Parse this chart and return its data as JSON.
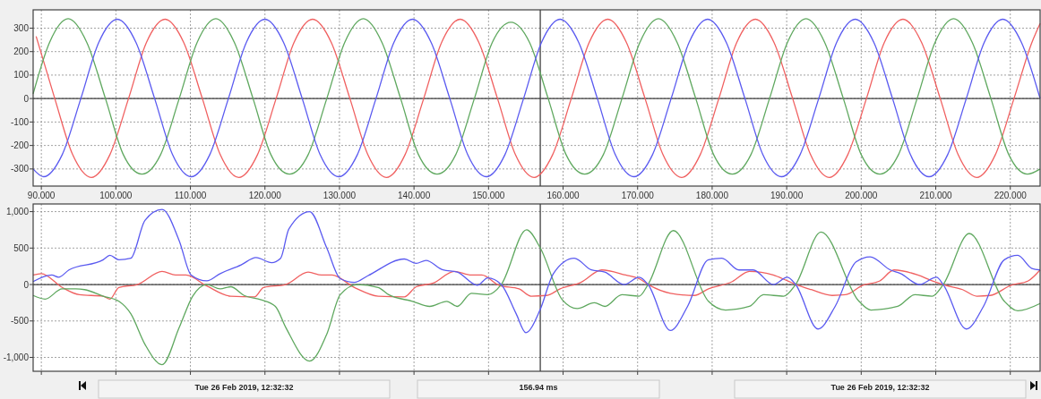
{
  "chart_data": [
    {
      "type": "line",
      "xlim": [
        88.9,
        224
      ],
      "ylim": [
        -373,
        378
      ],
      "xticks": [
        {
          "value": 90,
          "label": "90.000"
        },
        {
          "value": 100,
          "label": "100.000"
        },
        {
          "value": 110,
          "label": "110.000"
        },
        {
          "value": 120,
          "label": "120.000"
        },
        {
          "value": 130,
          "label": "130.000"
        },
        {
          "value": 140,
          "label": "140.000"
        },
        {
          "value": 150,
          "label": "150.000"
        },
        {
          "value": 160,
          "label": "160.000"
        },
        {
          "value": 170,
          "label": "170.000"
        },
        {
          "value": 180,
          "label": "180.000"
        },
        {
          "value": 190,
          "label": "190.000"
        },
        {
          "value": 200,
          "label": "200.000"
        },
        {
          "value": 210,
          "label": "210.000"
        },
        {
          "value": 220,
          "label": "220.000"
        }
      ],
      "yticks": [
        -300,
        -200,
        -100,
        0,
        100,
        200,
        300
      ],
      "grid": true,
      "line_style": "solid",
      "ref_lines": [
        {
          "axis": "y",
          "value": 0,
          "color": "#404040"
        },
        {
          "axis": "x",
          "value": 156.94,
          "color": "#404040"
        }
      ],
      "series": [
        {
          "color": "#f06060",
          "x": [
            89.3,
            91.8,
            94.2,
            96.7,
            99.2,
            101.7,
            104.1,
            106.6,
            109.1,
            111.6,
            114.0,
            116.5,
            119.0,
            121.5,
            123.9,
            126.4,
            128.9,
            131.4,
            133.8,
            136.3,
            138.8,
            141.3,
            143.7,
            146.2,
            148.7,
            151.2,
            153.6,
            156.1,
            158.6,
            161.1,
            163.5,
            166.0,
            168.5,
            171.0,
            173.4,
            175.9,
            178.4,
            180.9,
            183.3,
            185.8,
            188.3,
            190.8,
            193.2,
            195.7,
            198.2,
            200.7,
            203.1,
            205.6,
            208.1,
            210.6,
            213.0,
            215.5,
            218.0,
            220.5,
            222.9,
            224.0
          ],
          "values": [
            265,
            0,
            -239,
            -336,
            -239,
            0,
            239,
            338,
            239,
            0,
            -239,
            -336,
            -239,
            0,
            239,
            338,
            239,
            0,
            -239,
            -336,
            -239,
            0,
            239,
            338,
            239,
            0,
            -239,
            -336,
            -239,
            0,
            239,
            338,
            239,
            0,
            -239,
            -336,
            -239,
            0,
            239,
            338,
            239,
            0,
            -239,
            -336,
            -239,
            0,
            239,
            338,
            239,
            0,
            -239,
            -336,
            -239,
            0,
            239,
            320
          ]
        },
        {
          "color": "#5fa85f",
          "x": [
            88.9,
            91.1,
            93.6,
            96.1,
            98.6,
            101.0,
            103.5,
            106.0,
            108.5,
            110.9,
            113.4,
            115.9,
            118.4,
            120.8,
            123.3,
            125.8,
            128.3,
            130.7,
            133.2,
            135.7,
            138.2,
            140.6,
            143.1,
            145.6,
            148.1,
            150.5,
            153.0,
            155.5,
            158.0,
            160.4,
            162.9,
            165.4,
            167.9,
            170.3,
            172.8,
            175.3,
            177.8,
            180.2,
            182.7,
            185.2,
            187.7,
            190.1,
            192.6,
            195.1,
            197.6,
            200.0,
            202.5,
            205.0,
            207.5,
            209.9,
            212.4,
            214.9,
            217.4,
            219.8,
            222.3,
            224.0
          ],
          "values": [
            20,
            239,
            340,
            239,
            0,
            -239,
            -322,
            -239,
            0,
            239,
            340,
            239,
            0,
            -239,
            -322,
            -239,
            0,
            239,
            340,
            239,
            0,
            -239,
            -322,
            -239,
            0,
            239,
            325,
            239,
            0,
            -239,
            -322,
            -239,
            0,
            239,
            340,
            239,
            0,
            -239,
            -322,
            -239,
            0,
            239,
            340,
            239,
            0,
            -239,
            -322,
            -239,
            0,
            239,
            340,
            239,
            0,
            -239,
            -322,
            -300
          ]
        },
        {
          "color": "#5a5af0",
          "x": [
            88.9,
            90.3,
            92.8,
            95.3,
            97.7,
            100.2,
            102.7,
            105.2,
            107.6,
            110.1,
            112.6,
            115.1,
            117.5,
            120.0,
            122.5,
            125.0,
            127.4,
            129.9,
            132.4,
            134.9,
            137.3,
            139.8,
            142.3,
            144.8,
            147.2,
            149.7,
            152.2,
            154.7,
            157.1,
            159.6,
            162.1,
            164.6,
            167.0,
            169.5,
            172.0,
            174.5,
            176.9,
            179.4,
            181.9,
            184.4,
            186.8,
            189.3,
            191.8,
            194.3,
            196.7,
            199.2,
            201.7,
            204.2,
            206.6,
            209.1,
            211.6,
            214.1,
            216.5,
            219.0,
            221.5,
            224.0
          ],
          "values": [
            -300,
            -333,
            -239,
            0,
            239,
            338,
            239,
            0,
            -239,
            -333,
            -239,
            0,
            239,
            338,
            239,
            0,
            -239,
            -333,
            -239,
            0,
            239,
            338,
            239,
            0,
            -239,
            -333,
            -239,
            0,
            239,
            338,
            239,
            0,
            -239,
            -333,
            -239,
            0,
            239,
            338,
            239,
            0,
            -239,
            -333,
            -239,
            0,
            239,
            338,
            239,
            0,
            -239,
            -333,
            -239,
            0,
            239,
            338,
            239,
            0
          ]
        }
      ]
    },
    {
      "type": "line",
      "xlim": [
        88.9,
        224
      ],
      "ylim": [
        -1190,
        1105
      ],
      "tick_labels": "y",
      "xticks": [
        90,
        100,
        110,
        120,
        130,
        140,
        150,
        160,
        170,
        180,
        190,
        200,
        210,
        220
      ],
      "yticks": [
        {
          "value": -1000,
          "label": "-1,000"
        },
        -500,
        0,
        500,
        {
          "value": 1000,
          "label": "1,000"
        }
      ],
      "grid": true,
      "line_style": "solid",
      "ref_lines": [
        {
          "axis": "y",
          "value": 0,
          "color": "#404040"
        },
        {
          "axis": "x",
          "value": 156.94,
          "color": "#404040"
        }
      ],
      "annotations": [
        "Tue 26 Feb 2019, 12:32:32",
        "156.94 ms",
        "Tue 26 Feb 2019, 12:32:32"
      ],
      "series": [
        {
          "color": "#f06060",
          "x": [
            88.9,
            90.0,
            92.8,
            95.1,
            98.3,
            99.2,
            100.4,
            102.9,
            106.2,
            108.0,
            109.4,
            112.2,
            115.4,
            118.6,
            119.8,
            122.8,
            125.8,
            127.6,
            129.0,
            132.0,
            135.2,
            138.7,
            140.3,
            142.6,
            145.4,
            147.7,
            149.1,
            151.4,
            154.1,
            155.7,
            157.8,
            159.6,
            162.4,
            165.2,
            168.4,
            170.2,
            171.6,
            174.4,
            177.6,
            179.5,
            182.7,
            185.0,
            188.2,
            190.1,
            191.5,
            193.3,
            196.1,
            197.9,
            200.2,
            202.5,
            204.4,
            207.6,
            209.5,
            211.3,
            213.6,
            215.5,
            217.3,
            220.1,
            222.4,
            224.0
          ],
          "values": [
            130,
            150,
            -40,
            -140,
            -160,
            -200,
            -40,
            0,
            180,
            130,
            130,
            -20,
            -160,
            -170,
            -40,
            0,
            170,
            130,
            130,
            -40,
            -160,
            -170,
            -30,
            20,
            180,
            130,
            130,
            -10,
            -60,
            -160,
            -150,
            -60,
            30,
            200,
            130,
            80,
            -10,
            -120,
            -150,
            -60,
            40,
            180,
            130,
            50,
            -10,
            -70,
            -150,
            -140,
            -10,
            50,
            200,
            130,
            50,
            -10,
            -70,
            -160,
            -150,
            -10,
            50,
            200
          ]
        },
        {
          "color": "#5fa85f",
          "x": [
            88.9,
            90.5,
            92.8,
            94.6,
            95.8,
            98.3,
            100.4,
            102.0,
            103.9,
            106.2,
            108.5,
            110.3,
            112.2,
            114.0,
            115.4,
            117.2,
            119.5,
            121.4,
            122.8,
            126.0,
            128.3,
            130.1,
            132.4,
            135.2,
            136.6,
            139.8,
            142.1,
            144.4,
            145.8,
            147.7,
            149.9,
            151.7,
            155.1,
            156.9,
            159.9,
            161.9,
            164.2,
            165.6,
            167.9,
            170.2,
            171.4,
            174.8,
            179.5,
            181.8,
            185.0,
            186.9,
            189.6,
            191.2,
            194.6,
            199.7,
            201.3,
            204.9,
            207.2,
            209.5,
            211.0,
            214.5,
            219.2,
            221.0,
            224.0
          ],
          "values": [
            -150,
            -200,
            -60,
            -60,
            -70,
            -160,
            -230,
            -400,
            -820,
            -1100,
            -590,
            -160,
            0,
            -60,
            -30,
            -150,
            -210,
            -300,
            -590,
            -1050,
            -680,
            -140,
            0,
            -40,
            -140,
            -230,
            -300,
            -230,
            -300,
            -120,
            -140,
            0,
            750,
            510,
            -210,
            -330,
            -250,
            -300,
            -140,
            -160,
            0,
            740,
            -230,
            -350,
            -300,
            -140,
            -160,
            0,
            720,
            -230,
            -350,
            -300,
            -140,
            -160,
            0,
            700,
            -230,
            -360,
            -260
          ]
        },
        {
          "color": "#5a5af0",
          "x": [
            88.9,
            91.4,
            92.3,
            93.7,
            98.3,
            99.2,
            100.4,
            102.0,
            103.9,
            106.2,
            108.5,
            110.1,
            112.2,
            114.0,
            116.8,
            118.8,
            120.9,
            122.1,
            123.2,
            126.0,
            128.3,
            130.1,
            132.0,
            133.8,
            138.7,
            140.3,
            141.6,
            143.9,
            145.8,
            148.5,
            149.9,
            151.7,
            153.7,
            155.0,
            156.9,
            158.7,
            161.5,
            163.8,
            165.6,
            168.2,
            170.2,
            171.4,
            174.4,
            176.7,
            179.5,
            181.3,
            183.6,
            185.5,
            188.2,
            190.1,
            191.2,
            194.2,
            196.5,
            199.3,
            201.2,
            203.9,
            205.3,
            207.8,
            210.1,
            211.0,
            214.1,
            216.4,
            219.2,
            221.0,
            222.9,
            224.0
          ],
          "values": [
            40,
            130,
            100,
            200,
            340,
            400,
            340,
            360,
            880,
            1030,
            600,
            130,
            50,
            150,
            270,
            370,
            300,
            360,
            760,
            1000,
            500,
            80,
            30,
            120,
            350,
            290,
            330,
            200,
            170,
            -10,
            90,
            0,
            -400,
            -660,
            -350,
            150,
            360,
            200,
            170,
            0,
            100,
            0,
            -630,
            -300,
            340,
            360,
            200,
            200,
            0,
            100,
            0,
            -610,
            -300,
            310,
            380,
            200,
            150,
            0,
            100,
            0,
            -610,
            -300,
            340,
            400,
            220,
            200
          ]
        }
      ]
    }
  ]
}
